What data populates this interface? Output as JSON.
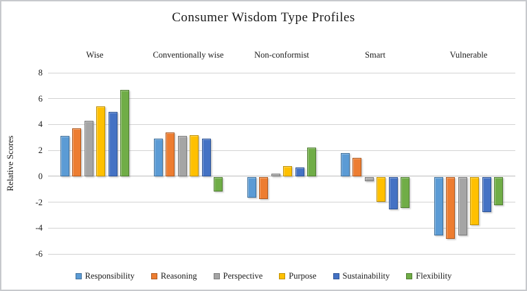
{
  "chart": {
    "title": "Consumer Wisdom Type Profiles",
    "y_axis_title": "Relative Scores"
  },
  "chart_data": {
    "type": "bar",
    "title": "Consumer Wisdom Type Profiles",
    "xlabel": "",
    "ylabel": "Relative Scores",
    "ylim": [
      -6,
      8
    ],
    "yticks": [
      8,
      6,
      4,
      2,
      0,
      -2,
      -4,
      -6
    ],
    "grid": true,
    "legend_position": "bottom",
    "categories": [
      "Wise",
      "Conventionally wise",
      "Non-conformist",
      "Smart",
      "Vulnerable"
    ],
    "series": [
      {
        "name": "Responsibility",
        "color": "#5B9BD5",
        "border_color": "#41719C",
        "values": [
          3.1,
          2.9,
          -1.6,
          1.8,
          -4.5
        ]
      },
      {
        "name": "Reasoning",
        "color": "#ED7D31",
        "border_color": "#AE5A21",
        "values": [
          3.7,
          3.4,
          -1.7,
          1.4,
          -4.8
        ]
      },
      {
        "name": "Perspective",
        "color": "#A5A5A5",
        "border_color": "#7B7B7B",
        "values": [
          4.3,
          3.1,
          0.2,
          -0.3,
          -4.5
        ]
      },
      {
        "name": "Purpose",
        "color": "#FFC000",
        "border_color": "#BF9000",
        "values": [
          5.4,
          3.2,
          0.8,
          -1.9,
          -3.7
        ]
      },
      {
        "name": "Sustainability",
        "color": "#4472C4",
        "border_color": "#2F5597",
        "values": [
          5.0,
          2.9,
          0.7,
          -2.5,
          -2.7
        ]
      },
      {
        "name": "Flexibility",
        "color": "#70AD47",
        "border_color": "#507E32",
        "values": [
          6.7,
          -1.1,
          2.2,
          -2.4,
          -2.2
        ]
      }
    ]
  }
}
